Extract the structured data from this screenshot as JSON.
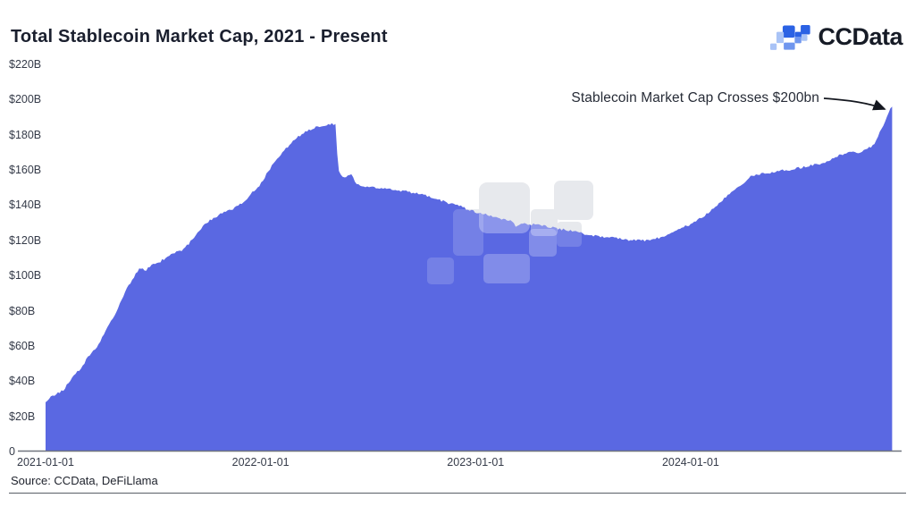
{
  "header": {
    "title": "Total Stablecoin Market Cap, 2021 - Present",
    "brand": {
      "name": "CCData",
      "logo_icon": "ccdata-pixel-mark",
      "logo_blue": "#2b62e4",
      "logo_light_blue": "#a9c3f6"
    }
  },
  "annotation": {
    "text": "Stablecoin Market Cap Crosses $200bn",
    "arrow": "points to final peak at right edge"
  },
  "footer": {
    "source": "Source: CCData, DeFiLlama"
  },
  "chart_data": {
    "type": "area",
    "title": "Total Stablecoin Market Cap, 2021 - Present",
    "unit": "USD billions",
    "area_color": "#5a68e2",
    "watermark": "ccdata-pixel-mark",
    "grid": "off",
    "ylim": [
      0,
      220
    ],
    "y_ticks": [
      {
        "value": 0,
        "label": "0"
      },
      {
        "value": 20,
        "label": "$20B"
      },
      {
        "value": 40,
        "label": "$40B"
      },
      {
        "value": 60,
        "label": "$60B"
      },
      {
        "value": 80,
        "label": "$80B"
      },
      {
        "value": 100,
        "label": "$100B"
      },
      {
        "value": 120,
        "label": "$120B"
      },
      {
        "value": 140,
        "label": "$140B"
      },
      {
        "value": 160,
        "label": "$160B"
      },
      {
        "value": 180,
        "label": "$180B"
      },
      {
        "value": 200,
        "label": "$200B"
      },
      {
        "value": 220,
        "label": "$220B"
      }
    ],
    "x_ticks": [
      {
        "date": "2021-01-01",
        "label": "2021-01-01"
      },
      {
        "date": "2022-01-01",
        "label": "2022-01-01"
      },
      {
        "date": "2023-01-01",
        "label": "2023-01-01"
      },
      {
        "date": "2024-01-01",
        "label": "2024-01-01"
      }
    ],
    "series": [
      {
        "name": "Total Stablecoin Market Cap ($B)",
        "points": [
          [
            "2021-01-01",
            28
          ],
          [
            "2021-01-10",
            31
          ],
          [
            "2021-01-20",
            33
          ],
          [
            "2021-02-01",
            35
          ],
          [
            "2021-02-15",
            42
          ],
          [
            "2021-03-01",
            47
          ],
          [
            "2021-03-15",
            54
          ],
          [
            "2021-04-01",
            61
          ],
          [
            "2021-04-15",
            70
          ],
          [
            "2021-05-01",
            79
          ],
          [
            "2021-05-15",
            90
          ],
          [
            "2021-06-01",
            100
          ],
          [
            "2021-06-10",
            104
          ],
          [
            "2021-06-20",
            103
          ],
          [
            "2021-07-01",
            106
          ],
          [
            "2021-07-15",
            108
          ],
          [
            "2021-08-01",
            112
          ],
          [
            "2021-08-10",
            113
          ],
          [
            "2021-08-20",
            114
          ],
          [
            "2021-09-01",
            118
          ],
          [
            "2021-09-15",
            124
          ],
          [
            "2021-10-01",
            130
          ],
          [
            "2021-10-15",
            133
          ],
          [
            "2021-11-01",
            136
          ],
          [
            "2021-11-15",
            138
          ],
          [
            "2021-12-01",
            141
          ],
          [
            "2021-12-15",
            146
          ],
          [
            "2022-01-01",
            152
          ],
          [
            "2022-01-15",
            160
          ],
          [
            "2022-02-01",
            167
          ],
          [
            "2022-02-15",
            173
          ],
          [
            "2022-03-01",
            178
          ],
          [
            "2022-03-15",
            181
          ],
          [
            "2022-04-01",
            184
          ],
          [
            "2022-04-15",
            185
          ],
          [
            "2022-05-01",
            186
          ],
          [
            "2022-05-09",
            186
          ],
          [
            "2022-05-12",
            161
          ],
          [
            "2022-05-16",
            157
          ],
          [
            "2022-05-25",
            156
          ],
          [
            "2022-06-05",
            157
          ],
          [
            "2022-06-12",
            152
          ],
          [
            "2022-06-20",
            151
          ],
          [
            "2022-07-01",
            150
          ],
          [
            "2022-07-15",
            150
          ],
          [
            "2022-08-01",
            149
          ],
          [
            "2022-08-15",
            149
          ],
          [
            "2022-09-01",
            148
          ],
          [
            "2022-09-15",
            147
          ],
          [
            "2022-10-01",
            146
          ],
          [
            "2022-10-15",
            145
          ],
          [
            "2022-11-01",
            143
          ],
          [
            "2022-11-15",
            141
          ],
          [
            "2022-12-01",
            140
          ],
          [
            "2022-12-15",
            138
          ],
          [
            "2023-01-01",
            136
          ],
          [
            "2023-01-15",
            135
          ],
          [
            "2023-02-01",
            133
          ],
          [
            "2023-02-15",
            132
          ],
          [
            "2023-03-01",
            131
          ],
          [
            "2023-03-11",
            128
          ],
          [
            "2023-03-20",
            130
          ],
          [
            "2023-04-01",
            129
          ],
          [
            "2023-04-15",
            129
          ],
          [
            "2023-05-01",
            128
          ],
          [
            "2023-05-15",
            127
          ],
          [
            "2023-06-01",
            126
          ],
          [
            "2023-06-15",
            125
          ],
          [
            "2023-07-01",
            124
          ],
          [
            "2023-07-15",
            123
          ],
          [
            "2023-08-01",
            122
          ],
          [
            "2023-08-15",
            122
          ],
          [
            "2023-09-01",
            121
          ],
          [
            "2023-09-15",
            120
          ],
          [
            "2023-10-01",
            120
          ],
          [
            "2023-10-15",
            120
          ],
          [
            "2023-11-01",
            121
          ],
          [
            "2023-11-15",
            122
          ],
          [
            "2023-12-01",
            125
          ],
          [
            "2023-12-15",
            127
          ],
          [
            "2024-01-01",
            129
          ],
          [
            "2024-01-15",
            132
          ],
          [
            "2024-02-01",
            136
          ],
          [
            "2024-02-15",
            140
          ],
          [
            "2024-03-01",
            145
          ],
          [
            "2024-03-15",
            149
          ],
          [
            "2024-04-01",
            152
          ],
          [
            "2024-04-10",
            156
          ],
          [
            "2024-04-20",
            157
          ],
          [
            "2024-05-01",
            158
          ],
          [
            "2024-05-15",
            158
          ],
          [
            "2024-06-01",
            160
          ],
          [
            "2024-06-15",
            160
          ],
          [
            "2024-07-01",
            161
          ],
          [
            "2024-07-15",
            162
          ],
          [
            "2024-08-01",
            163
          ],
          [
            "2024-08-15",
            164
          ],
          [
            "2024-09-01",
            167
          ],
          [
            "2024-09-15",
            169
          ],
          [
            "2024-10-01",
            170
          ],
          [
            "2024-10-15",
            170
          ],
          [
            "2024-11-01",
            173
          ],
          [
            "2024-11-10",
            176
          ],
          [
            "2024-11-18",
            182
          ],
          [
            "2024-11-25",
            187
          ],
          [
            "2024-12-01",
            191
          ],
          [
            "2024-12-04",
            194
          ],
          [
            "2024-12-07",
            197
          ],
          [
            "2024-12-08",
            196
          ]
        ]
      }
    ]
  }
}
